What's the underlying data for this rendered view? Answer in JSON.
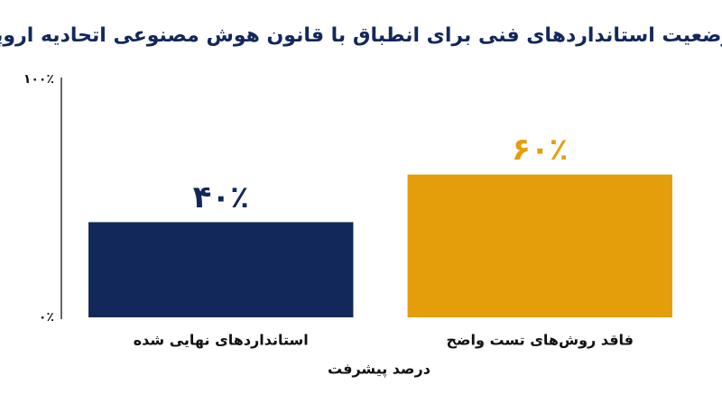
{
  "chart_data": {
    "type": "bar",
    "title": "وضعیت استانداردهای فنی برای انطباق با قانون هوش مصنوعی اتحادیه اروپا",
    "categories": [
      "استانداردهای نهایی شده",
      "فاقد روش‌های تست واضح"
    ],
    "values": [
      40,
      60
    ],
    "value_labels": [
      "۴۰٪",
      "۶۰٪"
    ],
    "colors": [
      "#13285a",
      "#e59e0b"
    ],
    "xlabel": "درصد پیشرفت",
    "ylim": [
      0,
      100
    ],
    "yticks": [
      {
        "value": 0,
        "label": "۰٪"
      },
      {
        "value": 100,
        "label": "۱۰۰٪"
      }
    ],
    "grid": false
  }
}
